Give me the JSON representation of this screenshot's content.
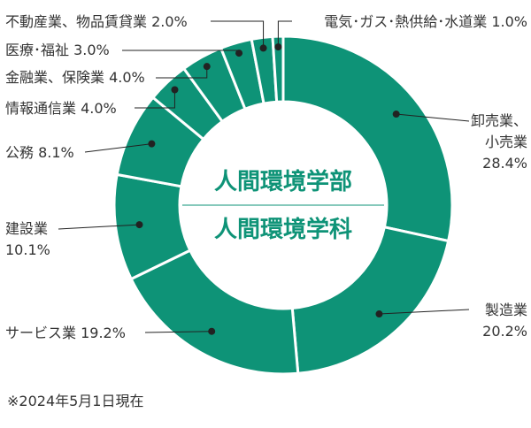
{
  "chart_data": {
    "type": "pie",
    "style": "donut",
    "color": "#0e9377",
    "center_titles": [
      "人間環境学部",
      "人間環境学科"
    ],
    "slices": [
      {
        "name": "卸売業、小売業",
        "label_lines": [
          "卸売業、",
          "小売業",
          "28.4%"
        ],
        "value": 28.4
      },
      {
        "name": "製造業",
        "label_lines": [
          "製造業",
          "20.2%"
        ],
        "value": 20.2
      },
      {
        "name": "サービス業",
        "label_lines": [
          "サービス業 19.2%"
        ],
        "value": 19.2
      },
      {
        "name": "建設業",
        "label_lines": [
          "建設業",
          "10.1%"
        ],
        "value": 10.1
      },
      {
        "name": "公務",
        "label_lines": [
          "公務 8.1%"
        ],
        "value": 8.1
      },
      {
        "name": "情報通信業",
        "label_lines": [
          "情報通信業 4.0%"
        ],
        "value": 4.0
      },
      {
        "name": "金融業、保険業",
        "label_lines": [
          "金融業、保険業 4.0%"
        ],
        "value": 4.0
      },
      {
        "name": "医療・福祉",
        "label_lines": [
          "医療･福祉 3.0%"
        ],
        "value": 3.0
      },
      {
        "name": "不動産業、物品賃貸業",
        "label_lines": [
          "不動産業、物品賃貸業 2.0%"
        ],
        "value": 2.0
      },
      {
        "name": "電気・ガス・熱供給・水道業",
        "label_lines": [
          "電気･ガス･熱供給･水道業 1.0%"
        ],
        "value": 1.0
      }
    ]
  },
  "footnote": "※2024年5月1日現在"
}
